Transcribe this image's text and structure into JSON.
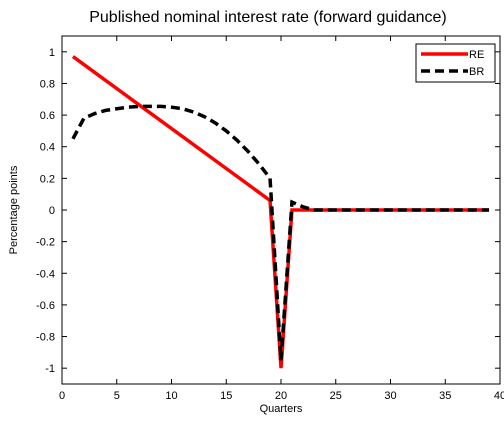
{
  "chart_data": {
    "type": "line",
    "title": "Published nominal interest rate (forward guidance)",
    "xlabel": "Quarters",
    "ylabel": "Percentage points",
    "xlim": [
      0,
      40
    ],
    "ylim": [
      -1.1,
      1.1
    ],
    "xticks": [
      0,
      5,
      10,
      15,
      20,
      25,
      30,
      35,
      40
    ],
    "yticks": [
      -1,
      -0.8,
      -0.6,
      -0.4,
      -0.2,
      0,
      0.2,
      0.4,
      0.6,
      0.8,
      1
    ],
    "xtick_labels": [
      "0",
      "5",
      "10",
      "15",
      "20",
      "25",
      "30",
      "35",
      "40"
    ],
    "ytick_labels": [
      "-1",
      "-0.8",
      "-0.6",
      "-0.4",
      "-0.2",
      "0",
      "0.2",
      "0.4",
      "0.6",
      "0.8",
      "1"
    ],
    "grid": false,
    "legend_position": "top-right",
    "series": [
      {
        "name": "RE",
        "color": "#ff0000",
        "dash": "solid",
        "x": [
          1,
          19,
          20,
          21,
          22,
          23,
          24,
          25,
          26,
          27,
          28,
          29,
          30,
          31,
          32,
          33,
          34,
          35,
          36,
          37,
          38,
          39
        ],
        "y": [
          0.97,
          0.06,
          -1.0,
          0.0,
          0.0,
          0.0,
          0.0,
          0.0,
          0.0,
          0.0,
          0.0,
          0.0,
          0.0,
          0.0,
          0.0,
          0.0,
          0.0,
          0.0,
          0.0,
          0.0,
          0.0,
          0.0
        ]
      },
      {
        "name": "BR",
        "color": "#000000",
        "dash": "dashed",
        "x": [
          1,
          2,
          3,
          4,
          5,
          6,
          7,
          8,
          9,
          10,
          11,
          12,
          13,
          14,
          15,
          16,
          17,
          18,
          19,
          20,
          21,
          22,
          23,
          24,
          25,
          26,
          27,
          28,
          29,
          30,
          31,
          32,
          33,
          34,
          35,
          36,
          37,
          38,
          39
        ],
        "y": [
          0.45,
          0.58,
          0.61,
          0.63,
          0.64,
          0.65,
          0.655,
          0.655,
          0.655,
          0.65,
          0.64,
          0.62,
          0.59,
          0.55,
          0.5,
          0.44,
          0.37,
          0.29,
          0.2,
          -0.95,
          0.05,
          0.02,
          0.0,
          0.0,
          0.0,
          0.0,
          0.0,
          0.0,
          0.0,
          0.0,
          0.0,
          0.0,
          0.0,
          0.0,
          0.0,
          0.0,
          0.0,
          0.0,
          0.0
        ]
      }
    ]
  }
}
